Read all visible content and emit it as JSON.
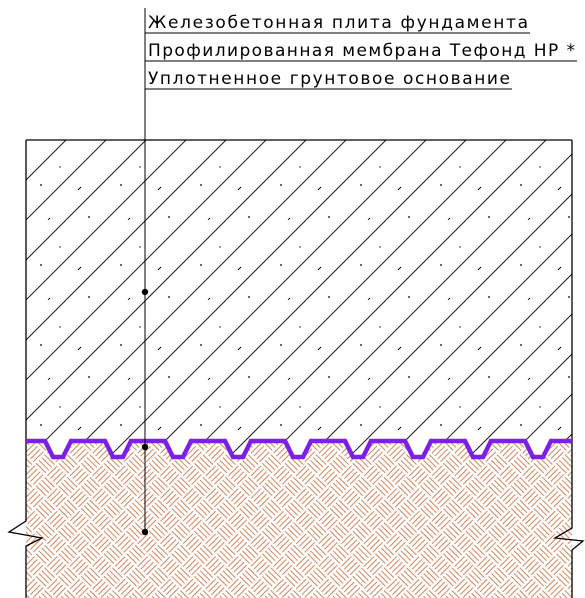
{
  "labels": [
    {
      "text": "Железобетонная плита фундамента"
    },
    {
      "text": "Профилированная мембрана Тефонд HP *"
    },
    {
      "text": "Уплотненное грунтовое основание"
    }
  ],
  "colors": {
    "background": "#ffffff",
    "line": "#000000",
    "membrane": "#7b20e6",
    "soil_hatch": "#c8784e"
  }
}
